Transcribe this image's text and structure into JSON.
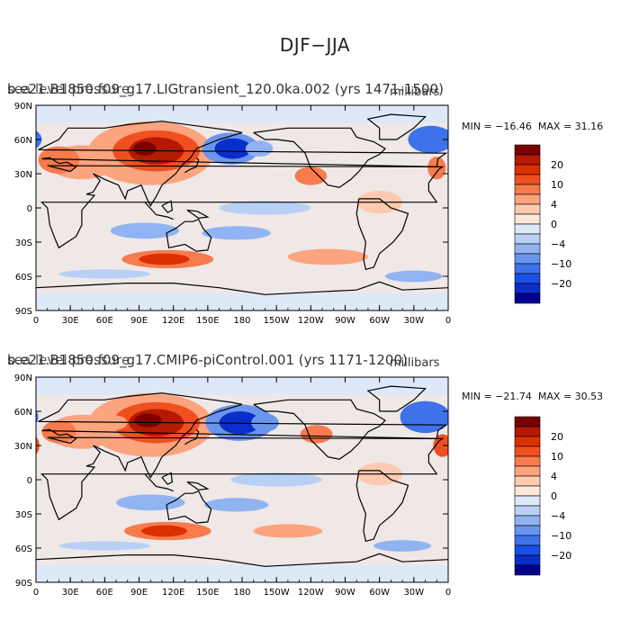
{
  "title": "DJF−JJA",
  "panels": [
    {
      "case_id": "b.e21.B1850.f09_g17.LIGtransient_120.0ka.002 (yrs 1471-1500)",
      "variable": "sea level pressure",
      "units": "millibars",
      "min_label": "MIN = −16.46",
      "max_label": "MAX =  31.16"
    },
    {
      "case_id": "b.e21.B1850.f09_g17.CMIP6-piControl.001 (yrs 1171-1200)",
      "variable": "sea level pressure",
      "units": "millibars",
      "min_label": "MIN = −21.74",
      "max_label": "MAX =  30.53"
    }
  ],
  "lat_labels": [
    "90N",
    "60N",
    "30N",
    "0",
    "30S",
    "60S",
    "90S"
  ],
  "lon_labels": [
    "0",
    "30E",
    "60E",
    "90E",
    "120E",
    "150E",
    "180",
    "150W",
    "120W",
    "90W",
    "60W",
    "30W",
    "0"
  ],
  "colorbar": {
    "labels": [
      "20",
      "10",
      "4",
      "0",
      "−4",
      "−10",
      "−20"
    ],
    "colors": [
      "#7a0000",
      "#b31a00",
      "#dc3000",
      "#f05020",
      "#f77b4d",
      "#fba47e",
      "#fdcab0",
      "#fde8d8",
      "#dde8f8",
      "#b9d0f5",
      "#90b3f2",
      "#6a95ee",
      "#3e72ea",
      "#1a4fe6",
      "#0a2fc8",
      "#00008c"
    ]
  },
  "palette": {
    "frame": "#000000",
    "coast": "#000000"
  }
}
